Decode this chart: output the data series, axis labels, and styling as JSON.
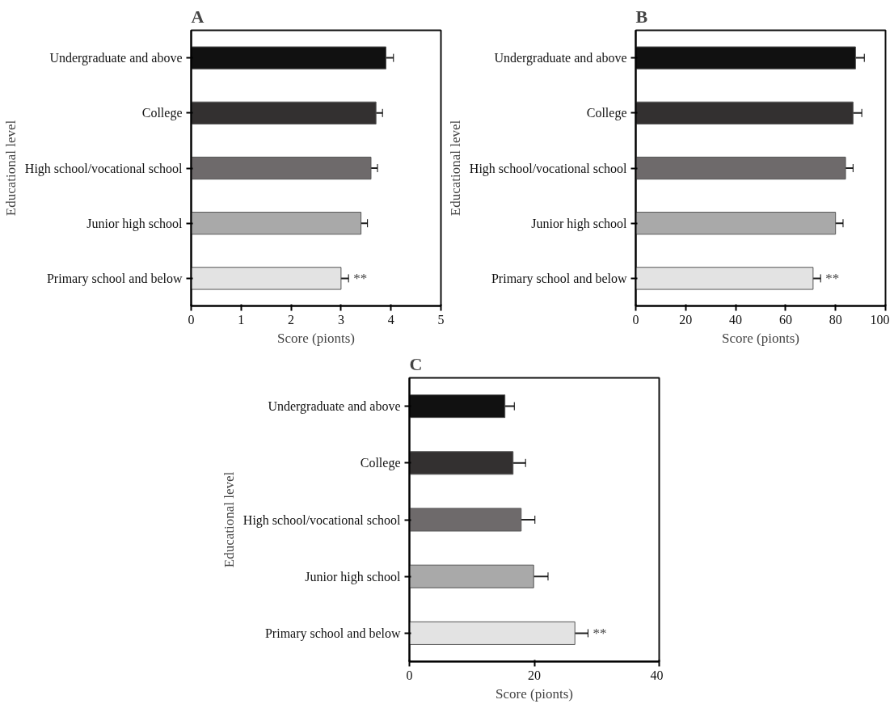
{
  "chart_data": [
    {
      "type": "bar",
      "title": "A",
      "orientation": "horizontal",
      "xlabel": "Score (pionts)",
      "ylabel": "Educational level",
      "categories": [
        "Undergraduate and above",
        "College",
        "High school/vocational school",
        "Junior high school",
        "Primary school and below"
      ],
      "values": [
        3.9,
        3.7,
        3.6,
        3.4,
        3.0
      ],
      "errors": [
        0.15,
        0.13,
        0.13,
        0.13,
        0.15
      ],
      "colors": [
        "#111111",
        "#333030",
        "#6e6a6b",
        "#a9a9a9",
        "#e3e3e3"
      ],
      "xlim": [
        0,
        5
      ],
      "xticks": [
        0,
        1,
        2,
        3,
        4,
        5
      ],
      "grid": false,
      "annotations": [
        "**"
      ]
    },
    {
      "type": "bar",
      "title": "B",
      "orientation": "horizontal",
      "xlabel": "Score (pionts)",
      "ylabel": "Educational level",
      "categories": [
        "Undergraduate and above",
        "College",
        "High school/vocational school",
        "Junior high school",
        "Primary school and below"
      ],
      "values": [
        88,
        87,
        84,
        80,
        71
      ],
      "errors": [
        3.5,
        3.5,
        3,
        3,
        3
      ],
      "colors": [
        "#111111",
        "#333030",
        "#6e6a6b",
        "#a9a9a9",
        "#e3e3e3"
      ],
      "xlim": [
        0,
        100
      ],
      "xticks": [
        0,
        20,
        40,
        60,
        80,
        100
      ],
      "grid": false,
      "annotations": [
        "**"
      ]
    },
    {
      "type": "bar",
      "title": "C",
      "orientation": "horizontal",
      "xlabel": "Score (pionts)",
      "ylabel": "Educational level",
      "categories": [
        "Undergraduate and above",
        "College",
        "High school/vocational school",
        "Junior high school",
        "Primary school and below"
      ],
      "values": [
        15.3,
        16.6,
        17.9,
        19.9,
        26.5
      ],
      "errors": [
        1.5,
        2,
        2.2,
        2.3,
        2.1
      ],
      "colors": [
        "#111111",
        "#333030",
        "#6e6a6b",
        "#a9a9a9",
        "#e3e3e3"
      ],
      "xlim": [
        0,
        40
      ],
      "xticks": [
        0,
        20,
        40
      ],
      "grid": false,
      "annotations": [
        "**"
      ]
    }
  ]
}
